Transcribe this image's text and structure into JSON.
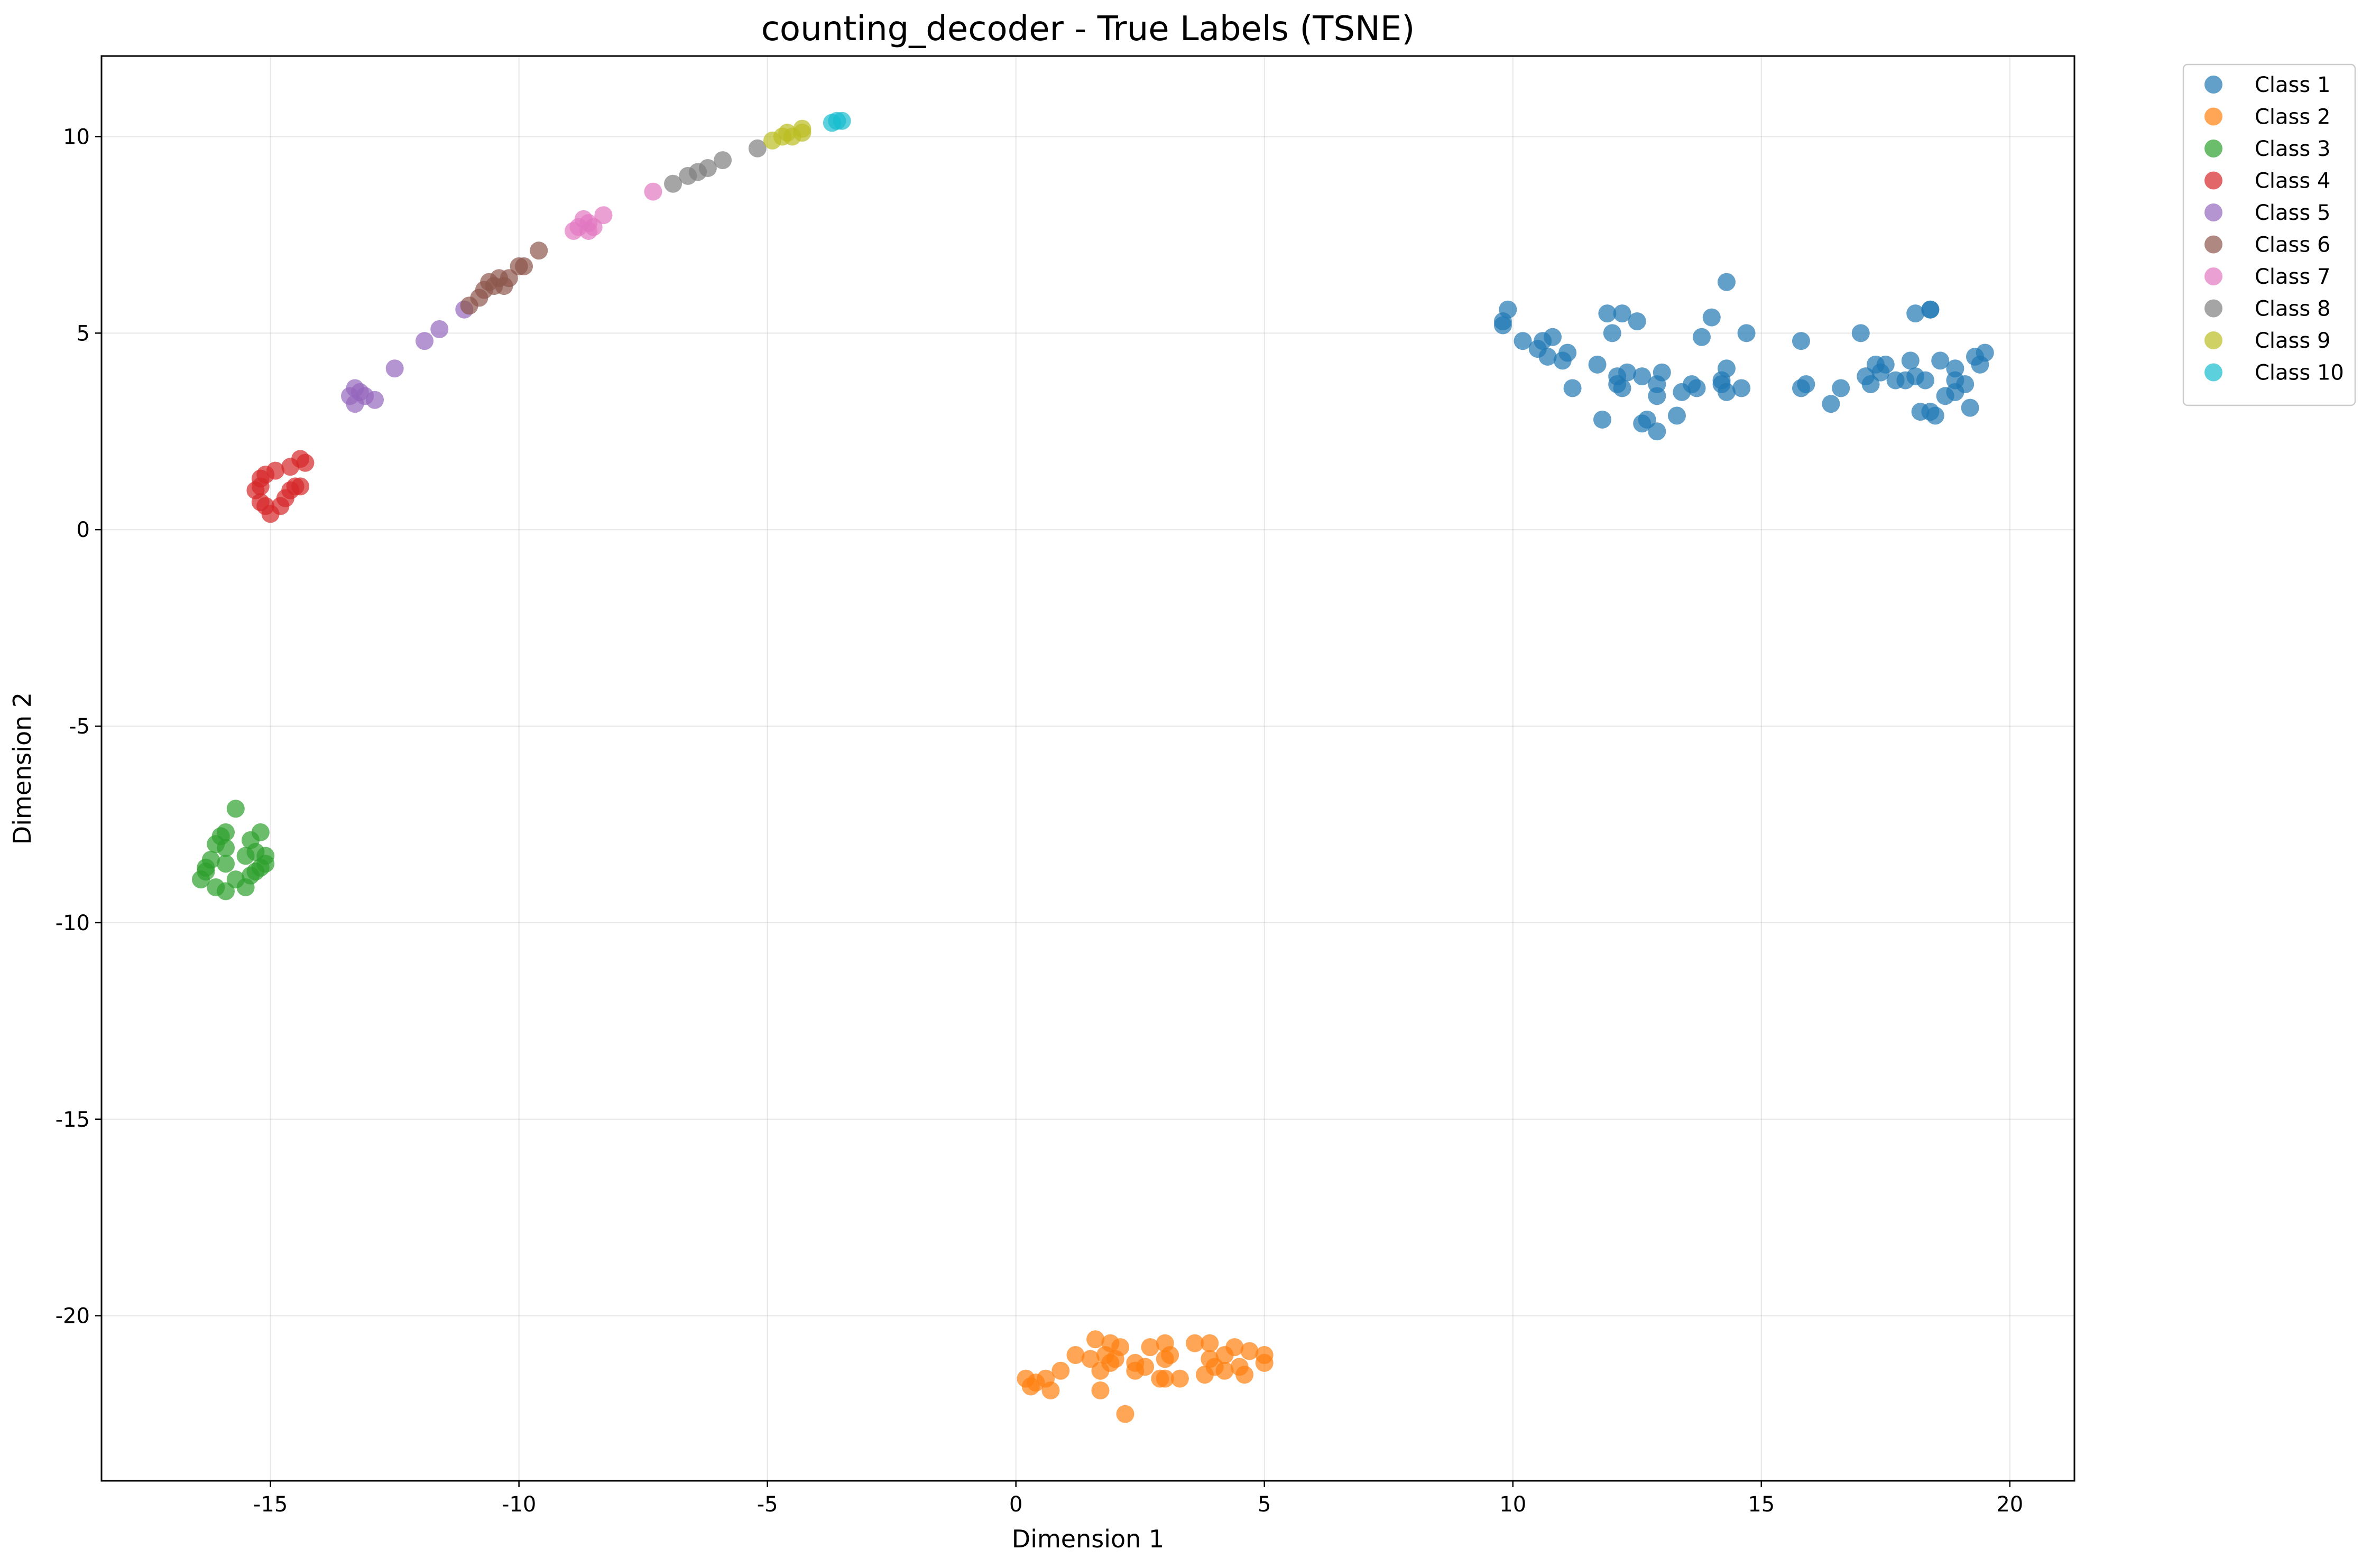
{
  "chart_data": {
    "type": "scatter",
    "title": "counting_decoder - True Labels (TSNE)",
    "xlabel": "Dimension 1",
    "ylabel": "Dimension 2",
    "xlim": [
      -18.4,
      21.3
    ],
    "ylim": [
      -24.2,
      12.05
    ],
    "xticks": [
      -15,
      -10,
      -5,
      0,
      5,
      10,
      15,
      20
    ],
    "yticks": [
      10,
      5,
      0,
      -5,
      -10,
      -15,
      -20
    ],
    "grid": true,
    "legend_position": "outside-top-right",
    "series": [
      {
        "name": "Class 1",
        "color": "#1f77b4",
        "points": [
          [
            9.8,
            5.3
          ],
          [
            9.9,
            5.6
          ],
          [
            9.8,
            5.2
          ],
          [
            10.2,
            4.8
          ],
          [
            10.5,
            4.6
          ],
          [
            10.6,
            4.8
          ],
          [
            10.7,
            4.4
          ],
          [
            10.8,
            4.9
          ],
          [
            11.0,
            4.3
          ],
          [
            11.1,
            4.5
          ],
          [
            11.2,
            3.6
          ],
          [
            11.7,
            4.2
          ],
          [
            11.9,
            5.5
          ],
          [
            12.0,
            5.0
          ],
          [
            12.1,
            3.7
          ],
          [
            12.1,
            3.9
          ],
          [
            12.2,
            3.6
          ],
          [
            12.2,
            5.5
          ],
          [
            12.3,
            4.0
          ],
          [
            12.5,
            5.3
          ],
          [
            11.8,
            2.8
          ],
          [
            12.6,
            2.7
          ],
          [
            12.6,
            3.9
          ],
          [
            12.7,
            2.8
          ],
          [
            12.9,
            2.5
          ],
          [
            12.9,
            3.4
          ],
          [
            12.9,
            3.7
          ],
          [
            13.0,
            4.0
          ],
          [
            13.3,
            2.9
          ],
          [
            13.4,
            3.5
          ],
          [
            13.6,
            3.7
          ],
          [
            13.7,
            3.6
          ],
          [
            13.8,
            4.9
          ],
          [
            14.0,
            5.4
          ],
          [
            14.2,
            3.7
          ],
          [
            14.2,
            3.8
          ],
          [
            14.3,
            4.1
          ],
          [
            14.3,
            3.5
          ],
          [
            14.3,
            6.3
          ],
          [
            14.6,
            3.6
          ],
          [
            14.7,
            5.0
          ],
          [
            15.8,
            3.6
          ],
          [
            15.8,
            4.8
          ],
          [
            15.9,
            3.7
          ],
          [
            16.4,
            3.2
          ],
          [
            16.6,
            3.6
          ],
          [
            17.0,
            5.0
          ],
          [
            17.1,
            3.9
          ],
          [
            17.2,
            3.7
          ],
          [
            17.3,
            4.2
          ],
          [
            17.5,
            4.2
          ],
          [
            17.4,
            4.0
          ],
          [
            17.7,
            3.8
          ],
          [
            17.9,
            3.8
          ],
          [
            18.0,
            4.3
          ],
          [
            18.1,
            3.9
          ],
          [
            18.1,
            5.5
          ],
          [
            18.2,
            3.0
          ],
          [
            18.3,
            3.8
          ],
          [
            18.4,
            5.6
          ],
          [
            18.4,
            5.6
          ],
          [
            18.4,
            3.0
          ],
          [
            18.5,
            2.9
          ],
          [
            18.6,
            4.3
          ],
          [
            18.7,
            3.4
          ],
          [
            18.9,
            4.1
          ],
          [
            18.9,
            3.8
          ],
          [
            18.9,
            3.5
          ],
          [
            19.1,
            3.7
          ],
          [
            19.2,
            3.1
          ],
          [
            19.3,
            4.4
          ],
          [
            19.4,
            4.2
          ],
          [
            19.5,
            4.5
          ]
        ]
      },
      {
        "name": "Class 2",
        "color": "#ff7f0e",
        "points": [
          [
            0.2,
            -21.6
          ],
          [
            0.3,
            -21.8
          ],
          [
            0.4,
            -21.7
          ],
          [
            0.6,
            -21.6
          ],
          [
            0.7,
            -21.9
          ],
          [
            0.9,
            -21.4
          ],
          [
            1.2,
            -21.0
          ],
          [
            1.5,
            -21.1
          ],
          [
            1.6,
            -20.6
          ],
          [
            1.7,
            -21.4
          ],
          [
            1.7,
            -21.9
          ],
          [
            1.8,
            -21.0
          ],
          [
            1.9,
            -20.7
          ],
          [
            1.9,
            -21.2
          ],
          [
            2.0,
            -21.1
          ],
          [
            2.1,
            -20.8
          ],
          [
            2.2,
            -22.5
          ],
          [
            2.4,
            -21.2
          ],
          [
            2.4,
            -21.4
          ],
          [
            2.6,
            -21.3
          ],
          [
            2.7,
            -20.8
          ],
          [
            2.9,
            -21.6
          ],
          [
            3.0,
            -20.7
          ],
          [
            3.0,
            -21.1
          ],
          [
            3.0,
            -21.6
          ],
          [
            3.1,
            -21.0
          ],
          [
            3.3,
            -21.6
          ],
          [
            3.6,
            -20.7
          ],
          [
            3.8,
            -21.5
          ],
          [
            3.9,
            -20.7
          ],
          [
            3.9,
            -21.1
          ],
          [
            4.0,
            -21.3
          ],
          [
            4.2,
            -21.0
          ],
          [
            4.2,
            -21.4
          ],
          [
            4.4,
            -20.8
          ],
          [
            4.5,
            -21.3
          ],
          [
            4.6,
            -21.5
          ],
          [
            4.7,
            -20.9
          ],
          [
            5.0,
            -21.0
          ],
          [
            5.0,
            -21.2
          ]
        ]
      },
      {
        "name": "Class 3",
        "color": "#2ca02c",
        "points": [
          [
            -15.7,
            -7.1
          ],
          [
            -15.9,
            -7.7
          ],
          [
            -16.0,
            -7.8
          ],
          [
            -15.2,
            -7.7
          ],
          [
            -16.1,
            -8.0
          ],
          [
            -15.4,
            -7.9
          ],
          [
            -15.9,
            -8.1
          ],
          [
            -15.3,
            -8.2
          ],
          [
            -16.2,
            -8.4
          ],
          [
            -15.5,
            -8.3
          ],
          [
            -15.1,
            -8.3
          ],
          [
            -16.3,
            -8.6
          ],
          [
            -15.9,
            -8.5
          ],
          [
            -15.1,
            -8.5
          ],
          [
            -16.3,
            -8.7
          ],
          [
            -15.3,
            -8.7
          ],
          [
            -15.2,
            -8.6
          ],
          [
            -16.4,
            -8.9
          ],
          [
            -15.7,
            -8.9
          ],
          [
            -15.4,
            -8.8
          ],
          [
            -16.1,
            -9.1
          ],
          [
            -15.9,
            -9.2
          ],
          [
            -15.5,
            -9.1
          ]
        ]
      },
      {
        "name": "Class 4",
        "color": "#d62728",
        "points": [
          [
            -14.4,
            1.8
          ],
          [
            -14.3,
            1.7
          ],
          [
            -14.6,
            1.6
          ],
          [
            -14.9,
            1.5
          ],
          [
            -15.1,
            1.4
          ],
          [
            -15.2,
            1.3
          ],
          [
            -15.3,
            1.0
          ],
          [
            -15.2,
            1.1
          ],
          [
            -14.4,
            1.1
          ],
          [
            -14.5,
            1.1
          ],
          [
            -14.6,
            1.0
          ],
          [
            -14.7,
            0.8
          ],
          [
            -15.2,
            0.7
          ],
          [
            -15.1,
            0.6
          ],
          [
            -14.8,
            0.6
          ],
          [
            -15.0,
            0.4
          ]
        ]
      },
      {
        "name": "Class 5",
        "color": "#9467bd",
        "points": [
          [
            -13.3,
            3.6
          ],
          [
            -13.2,
            3.5
          ],
          [
            -13.4,
            3.4
          ],
          [
            -13.1,
            3.4
          ],
          [
            -12.9,
            3.3
          ],
          [
            -13.3,
            3.2
          ],
          [
            -12.5,
            4.1
          ],
          [
            -11.9,
            4.8
          ],
          [
            -11.6,
            5.1
          ],
          [
            -11.1,
            5.6
          ]
        ]
      },
      {
        "name": "Class 6",
        "color": "#8c564b",
        "points": [
          [
            -11.0,
            5.7
          ],
          [
            -10.8,
            5.9
          ],
          [
            -10.7,
            6.1
          ],
          [
            -10.6,
            6.3
          ],
          [
            -10.5,
            6.2
          ],
          [
            -10.4,
            6.4
          ],
          [
            -10.3,
            6.2
          ],
          [
            -10.2,
            6.4
          ],
          [
            -10.0,
            6.7
          ],
          [
            -9.9,
            6.7
          ],
          [
            -9.6,
            7.1
          ]
        ]
      },
      {
        "name": "Class 7",
        "color": "#e377c2",
        "points": [
          [
            -8.9,
            7.6
          ],
          [
            -8.8,
            7.7
          ],
          [
            -8.7,
            7.9
          ],
          [
            -8.6,
            7.8
          ],
          [
            -8.6,
            7.6
          ],
          [
            -8.5,
            7.7
          ],
          [
            -8.3,
            8.0
          ],
          [
            -7.3,
            8.6
          ]
        ]
      },
      {
        "name": "Class 8",
        "color": "#7f7f7f",
        "points": [
          [
            -6.9,
            8.8
          ],
          [
            -6.6,
            9.0
          ],
          [
            -6.4,
            9.1
          ],
          [
            -6.2,
            9.2
          ],
          [
            -5.9,
            9.4
          ],
          [
            -5.2,
            9.7
          ]
        ]
      },
      {
        "name": "Class 9",
        "color": "#bcbd22",
        "points": [
          [
            -4.9,
            9.9
          ],
          [
            -4.7,
            10.0
          ],
          [
            -4.6,
            10.1
          ],
          [
            -4.5,
            10.0
          ],
          [
            -4.3,
            10.2
          ],
          [
            -4.3,
            10.1
          ]
        ]
      },
      {
        "name": "Class 10",
        "color": "#17becf",
        "points": [
          [
            -3.7,
            10.35
          ],
          [
            -3.6,
            10.4
          ],
          [
            -3.5,
            10.4
          ]
        ]
      }
    ]
  }
}
